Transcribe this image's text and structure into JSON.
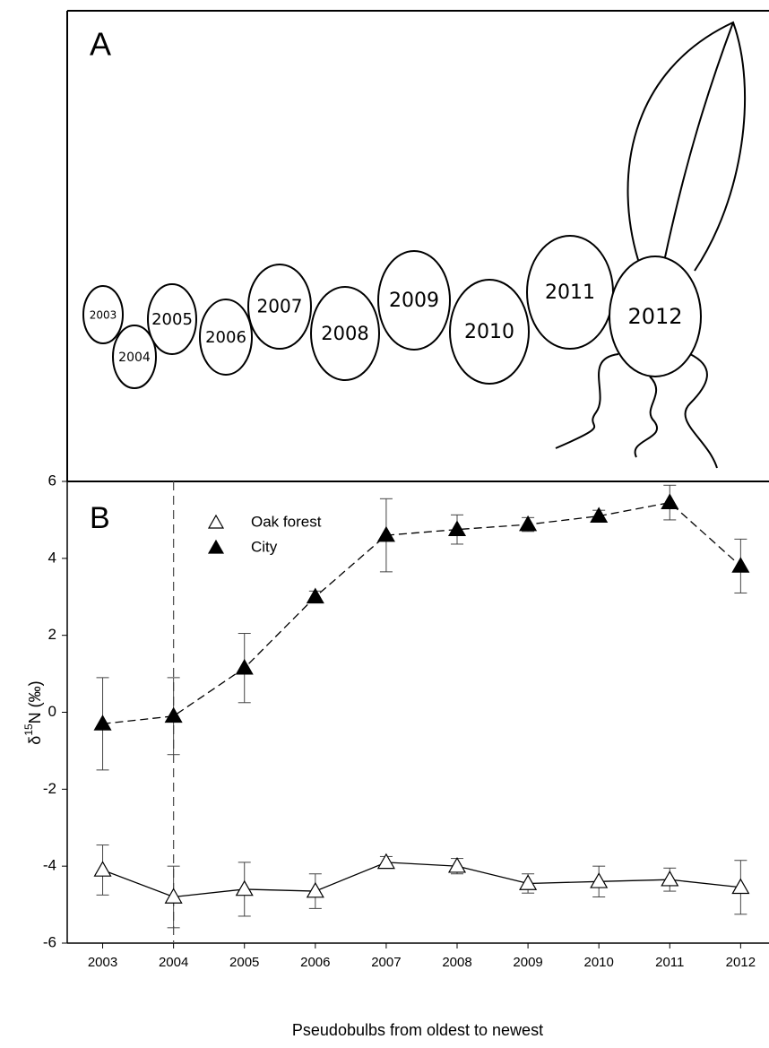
{
  "diagram": {
    "panel_label": "A",
    "pseudobulbs": [
      "2003",
      "2004",
      "2005",
      "2006",
      "2007",
      "2008",
      "2009",
      "2010",
      "2011",
      "2012"
    ]
  },
  "chart_data": {
    "type": "line",
    "panel_label": "B",
    "xlabel": "Pseudobulbs from oldest to newest",
    "ylabel": {
      "prefix": "δ",
      "superscript": "15",
      "suffix": "N (‰)"
    },
    "x": [
      2003,
      2004,
      2005,
      2006,
      2007,
      2008,
      2009,
      2010,
      2011,
      2012
    ],
    "xlim": [
      2002.5,
      2012.4
    ],
    "xticks": [
      2003,
      2004,
      2005,
      2006,
      2007,
      2008,
      2009,
      2010,
      2011,
      2012
    ],
    "ylim": [
      -6,
      6
    ],
    "yticks": [
      -6,
      -4,
      -2,
      0,
      2,
      4,
      6
    ],
    "vline": 2004,
    "series": [
      {
        "name": "Oak forest",
        "color": "#000000",
        "marker": "open",
        "line_style": "solid",
        "values": [
          -4.1,
          -4.8,
          -4.6,
          -4.65,
          -3.9,
          -4.0,
          -4.45,
          -4.4,
          -4.35,
          -4.55
        ],
        "errors": [
          0.65,
          0.8,
          0.7,
          0.45,
          0.15,
          0.2,
          0.25,
          0.4,
          0.3,
          0.7
        ]
      },
      {
        "name": "City",
        "color": "#000000",
        "marker": "filled",
        "line_style": "dashed",
        "values": [
          -0.3,
          -0.1,
          1.15,
          3.0,
          4.6,
          4.75,
          4.88,
          5.1,
          5.45,
          3.8
        ],
        "errors": [
          1.2,
          1.0,
          0.9,
          0.15,
          0.95,
          0.38,
          0.18,
          0.15,
          0.45,
          0.7
        ]
      }
    ]
  }
}
